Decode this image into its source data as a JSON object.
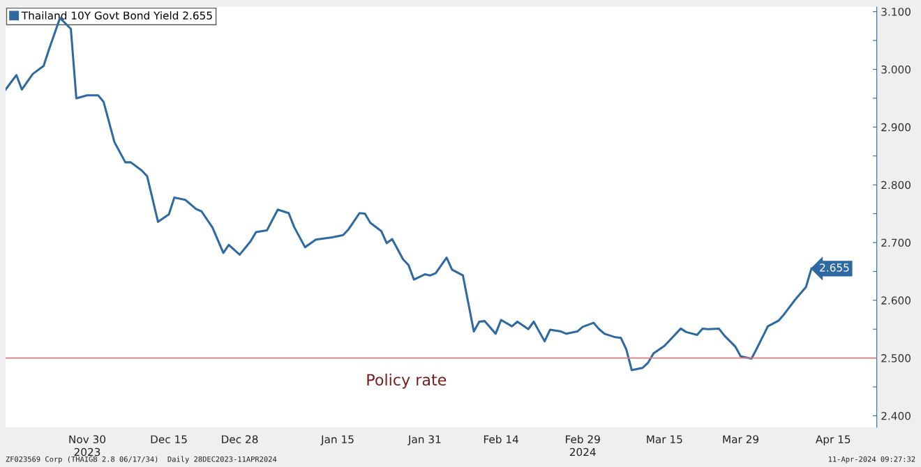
{
  "chart_data": {
    "type": "line",
    "x": [
      "2023-11-15",
      "2023-11-17",
      "2023-11-18",
      "2023-11-20",
      "2023-11-22",
      "2023-11-23",
      "2023-11-25",
      "2023-11-27",
      "2023-11-28",
      "2023-11-30",
      "2023-12-02",
      "2023-12-03",
      "2023-12-05",
      "2023-12-07",
      "2023-12-08",
      "2023-12-10",
      "2023-12-11",
      "2023-12-13",
      "2023-12-15",
      "2023-12-16",
      "2023-12-18",
      "2023-12-20",
      "2023-12-21",
      "2023-12-23",
      "2023-12-25",
      "2023-12-26",
      "2023-12-28",
      "2023-12-30",
      "2023-12-31",
      "2024-01-02",
      "2024-01-04",
      "2024-01-06",
      "2024-01-07",
      "2024-01-09",
      "2024-01-11",
      "2024-01-14",
      "2024-01-16",
      "2024-01-17",
      "2024-01-19",
      "2024-01-20",
      "2024-01-21",
      "2024-01-23",
      "2024-01-24",
      "2024-01-25",
      "2024-01-27",
      "2024-01-28",
      "2024-01-29",
      "2024-01-31",
      "2024-02-01",
      "2024-02-02",
      "2024-02-04",
      "2024-02-05",
      "2024-02-07",
      "2024-02-09",
      "2024-02-10",
      "2024-02-11",
      "2024-02-13",
      "2024-02-14",
      "2024-02-16",
      "2024-02-17",
      "2024-02-19",
      "2024-02-20",
      "2024-02-22",
      "2024-02-23",
      "2024-02-25",
      "2024-02-26",
      "2024-02-28",
      "2024-02-29",
      "2024-03-02",
      "2024-03-03",
      "2024-03-04",
      "2024-03-06",
      "2024-03-07",
      "2024-03-08",
      "2024-03-09",
      "2024-03-11",
      "2024-03-12",
      "2024-03-13",
      "2024-03-15",
      "2024-03-16",
      "2024-03-18",
      "2024-03-19",
      "2024-03-21",
      "2024-03-22",
      "2024-03-23",
      "2024-03-25",
      "2024-03-26",
      "2024-03-28",
      "2024-03-29",
      "2024-03-31",
      "2024-04-01",
      "2024-04-03",
      "2024-04-05",
      "2024-04-06",
      "2024-04-08",
      "2024-04-10",
      "2024-04-11"
    ],
    "series": [
      {
        "name": "Thailand 10Y Govt Bond Yield 2.655",
        "color": "#2e6aa1",
        "values": [
          2.965,
          2.99,
          2.965,
          2.992,
          3.006,
          3.035,
          3.089,
          3.07,
          2.95,
          2.955,
          2.955,
          2.944,
          2.874,
          2.839,
          2.839,
          2.825,
          2.815,
          2.736,
          2.749,
          2.778,
          2.774,
          2.758,
          2.754,
          2.726,
          2.682,
          2.696,
          2.679,
          2.702,
          2.718,
          2.721,
          2.757,
          2.751,
          2.727,
          2.692,
          2.705,
          2.709,
          2.713,
          2.723,
          2.751,
          2.75,
          2.734,
          2.72,
          2.699,
          2.706,
          2.671,
          2.661,
          2.636,
          2.645,
          2.643,
          2.647,
          2.674,
          2.653,
          2.643,
          2.546,
          2.563,
          2.564,
          2.542,
          2.566,
          2.555,
          2.563,
          2.55,
          2.563,
          2.529,
          2.549,
          2.546,
          2.542,
          2.546,
          2.554,
          2.561,
          2.55,
          2.542,
          2.536,
          2.535,
          2.515,
          2.479,
          2.483,
          2.492,
          2.508,
          2.521,
          2.531,
          2.551,
          2.545,
          2.54,
          2.551,
          2.55,
          2.551,
          2.539,
          2.52,
          2.503,
          2.499,
          2.517,
          2.555,
          2.565,
          2.576,
          2.601,
          2.623,
          2.655
        ],
        "value_labels": [
          null,
          null,
          null,
          null,
          null,
          null,
          null,
          null,
          null,
          null,
          null,
          null,
          null,
          null,
          null,
          null,
          null,
          null,
          null,
          null,
          null,
          null,
          null,
          null,
          null,
          null,
          null,
          null,
          null,
          null,
          null,
          null,
          null,
          null,
          null,
          null,
          null,
          null,
          null,
          null,
          null,
          null,
          null,
          null,
          null,
          null,
          null,
          null,
          null,
          null,
          null,
          null,
          null,
          null,
          null,
          null,
          null,
          null,
          null,
          null,
          null,
          null,
          null,
          null,
          null,
          null,
          null,
          null,
          null,
          null,
          null,
          null,
          null,
          null,
          null,
          null,
          null,
          null,
          null,
          null,
          null,
          null,
          null,
          null,
          null,
          null,
          null,
          null,
          null,
          null,
          null,
          null,
          null,
          null,
          null,
          null,
          "2.655"
        ]
      }
    ],
    "xlim": [
      "2023-11-15",
      "2024-04-23"
    ],
    "xticks": [
      {
        "value": "2023-11-30",
        "label": "Nov 30\n2023"
      },
      {
        "value": "2023-12-15",
        "label": "Dec 15"
      },
      {
        "value": "2023-12-28",
        "label": "Dec 28"
      },
      {
        "value": "2024-01-15",
        "label": "Jan 15"
      },
      {
        "value": "2024-01-31",
        "label": "Jan 31"
      },
      {
        "value": "2024-02-14",
        "label": "Feb 14"
      },
      {
        "value": "2024-02-29",
        "label": "Feb 29\n2024"
      },
      {
        "value": "2024-03-15",
        "label": "Mar 15"
      },
      {
        "value": "2024-03-29",
        "label": "Mar 29"
      },
      {
        "value": "2024-04-15",
        "label": "Apr 15"
      }
    ],
    "ylim": [
      2.38,
      3.108
    ],
    "yticks": [
      {
        "value": 2.4,
        "label": "2.400"
      },
      {
        "value": 2.45,
        "label": null
      },
      {
        "value": 2.5,
        "label": "2.500"
      },
      {
        "value": 2.55,
        "label": null
      },
      {
        "value": 2.6,
        "label": "2.600"
      },
      {
        "value": 2.65,
        "label": null
      },
      {
        "value": 2.7,
        "label": "2.700"
      },
      {
        "value": 2.75,
        "label": null
      },
      {
        "value": 2.8,
        "label": "2.800"
      },
      {
        "value": 2.85,
        "label": null
      },
      {
        "value": 2.9,
        "label": "2.900"
      },
      {
        "value": 2.95,
        "label": null
      },
      {
        "value": 3.0,
        "label": "3.000"
      },
      {
        "value": 3.05,
        "label": null
      },
      {
        "value": 3.1,
        "label": "3.100"
      }
    ],
    "ref_lines": [
      {
        "axis": "y",
        "value": 2.5,
        "label": "Policy rate",
        "color": "#e07b7b"
      }
    ],
    "annotations": [
      "ZF023569 Corp (THAIGB 2.8 06/17/34)  Daily 28DEC2023-11APR2024",
      "11-Apr-2024 09:27:32"
    ],
    "legend": "top left",
    "grid": false,
    "marker": "none",
    "line_style": "solid"
  }
}
